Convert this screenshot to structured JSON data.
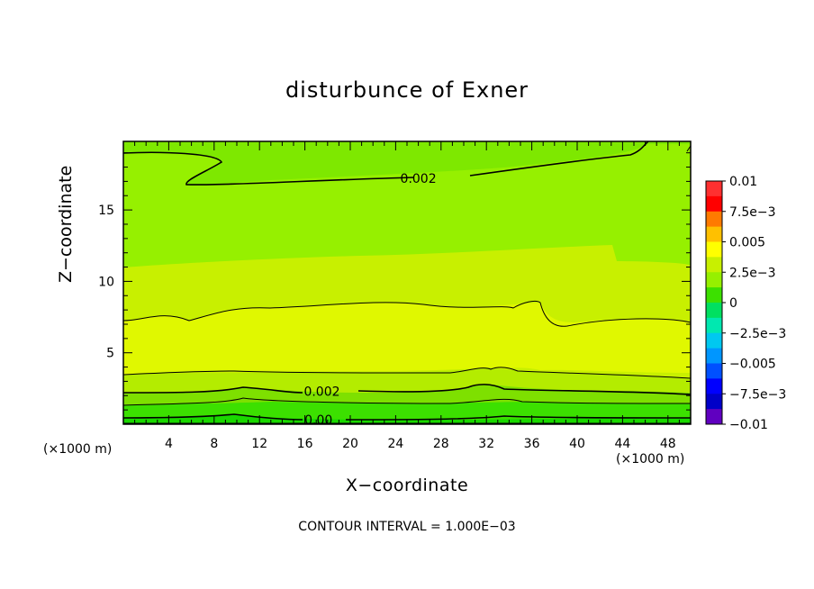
{
  "chart_data": {
    "type": "heatmap",
    "title": "disturbunce of Exner",
    "xlabel": "X−coordinate",
    "ylabel": "Z−coordinate",
    "x_unit_left": "(×1000 m)",
    "x_unit_right": "(×1000 m)",
    "xlim": [
      0,
      50
    ],
    "ylim": [
      0,
      19.8
    ],
    "x_ticks": [
      4,
      8,
      12,
      16,
      20,
      24,
      28,
      32,
      36,
      40,
      44,
      48
    ],
    "x_tick_labels": [
      "4",
      "8",
      "12",
      "16",
      "20",
      "24",
      "28",
      "32",
      "36",
      "40",
      "44",
      "48"
    ],
    "y_ticks": [
      5,
      10,
      15
    ],
    "y_tick_labels": [
      "5",
      "10",
      "15"
    ],
    "contour_labels": [
      {
        "text": "0.002",
        "x": 26,
        "y": 17.2
      },
      {
        "text": "0.002",
        "x": 17.5,
        "y": 2.3
      },
      {
        "text": "0.00",
        "x": 17.2,
        "y": 0.3
      }
    ],
    "colorbar": {
      "ticks": [
        "0.01",
        "7.5e−3",
        "0.005",
        "2.5e−3",
        "0",
        "−2.5e−3",
        "−0.005",
        "−7.5e−3",
        "−0.01"
      ],
      "colors": [
        "#ff3030",
        "#ff0000",
        "#ff7a00",
        "#ffc000",
        "#ffff00",
        "#c8f000",
        "#96f000",
        "#3ce000",
        "#00e060",
        "#00e8b0",
        "#00c8f0",
        "#0096ff",
        "#0050ff",
        "#0000ff",
        "#0000c8",
        "#6000c0"
      ]
    },
    "contour_interval_text": "CONTOUR INTERVAL = 1.000E−03"
  }
}
